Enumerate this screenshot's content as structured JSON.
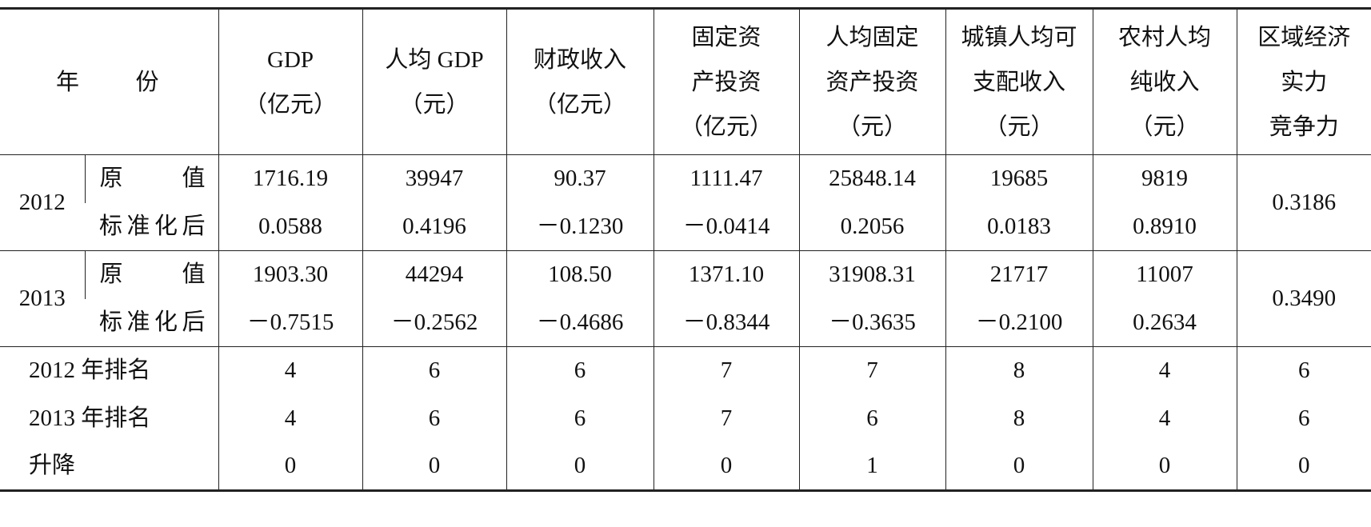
{
  "table": {
    "header": {
      "year": "年 份",
      "columns": [
        [
          "GDP",
          "（亿元）"
        ],
        [
          "人均 GDP",
          "（元）"
        ],
        [
          "财政收入",
          "（亿元）"
        ],
        [
          "固定资",
          "产投资",
          "（亿元）"
        ],
        [
          "人均固定",
          "资产投资",
          "（元）"
        ],
        [
          "城镇人均可",
          "支配收入",
          "（元）"
        ],
        [
          "农村人均",
          "纯收入",
          "（元）"
        ],
        [
          "区域经济",
          "实力",
          "竞争力"
        ]
      ]
    },
    "years": [
      {
        "year": "2012",
        "raw_label": "原 值",
        "raw": [
          "1716.19",
          "39947",
          "90.37",
          "1111.47",
          "25848.14",
          "19685",
          "9819"
        ],
        "std_label": "标准化后",
        "std": [
          "0.0588",
          "0.4196",
          "－0.1230",
          "－0.0414",
          "0.2056",
          "0.0183",
          "0.8910"
        ],
        "competitiveness": "0.3186"
      },
      {
        "year": "2013",
        "raw_label": "原 值",
        "raw": [
          "1903.30",
          "44294",
          "108.50",
          "1371.10",
          "31908.31",
          "21717",
          "11007"
        ],
        "std_label": "标准化后",
        "std": [
          "－0.7515",
          "－0.2562",
          "－0.4686",
          "－0.8344",
          "－0.3635",
          "－0.2100",
          "0.2634"
        ],
        "competitiveness": "0.3490"
      }
    ],
    "rankings": [
      {
        "label": "2012 年排名",
        "values": [
          4,
          6,
          6,
          7,
          7,
          8,
          4,
          6
        ]
      },
      {
        "label": "2013 年排名",
        "values": [
          4,
          6,
          6,
          7,
          6,
          8,
          4,
          6
        ]
      },
      {
        "label": "升降",
        "values": [
          0,
          0,
          0,
          0,
          1,
          0,
          0,
          0
        ]
      }
    ]
  }
}
